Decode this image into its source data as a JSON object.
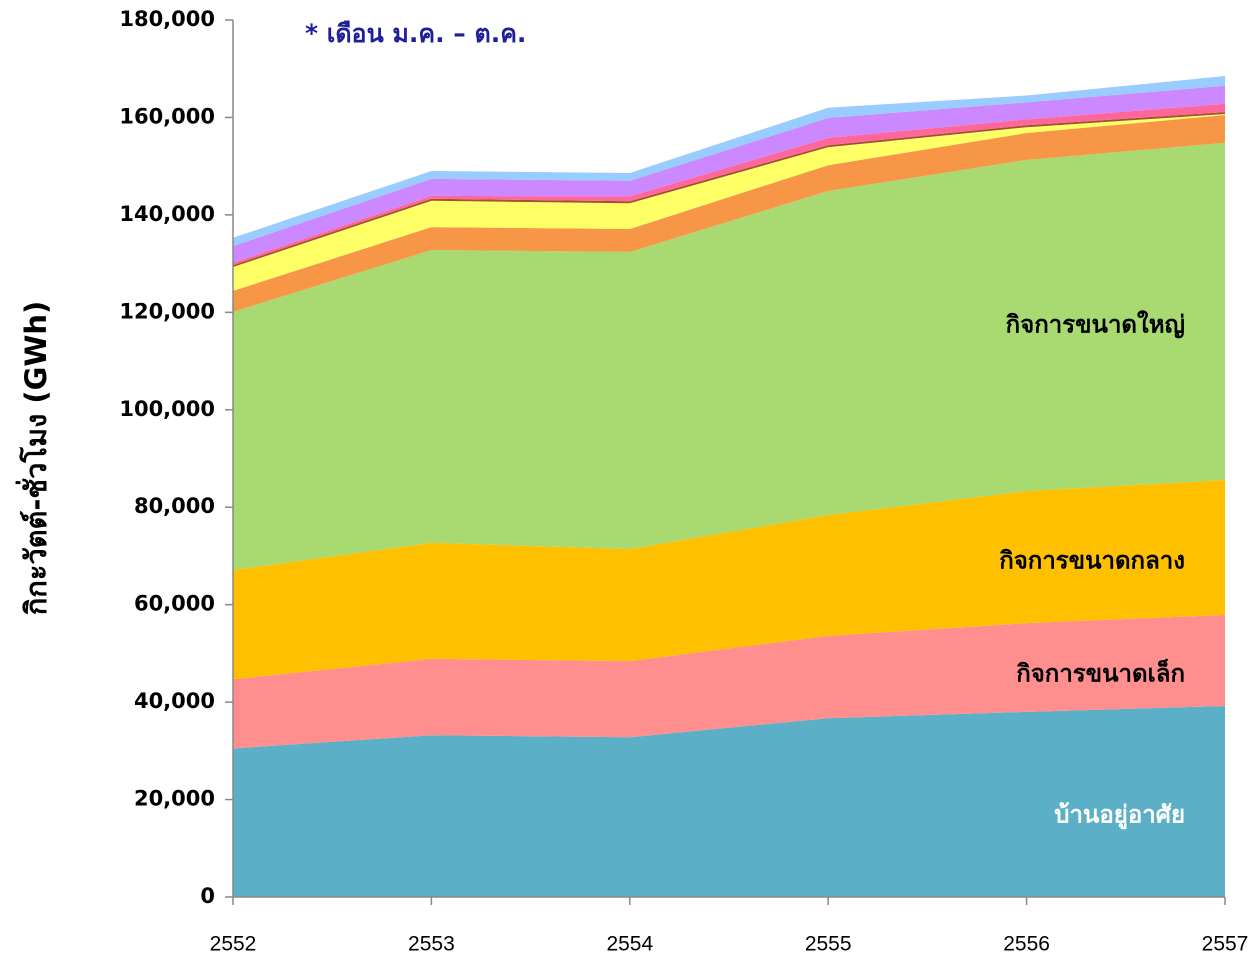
{
  "chart_data": {
    "type": "stacked_area",
    "annotation": "* เดือน ม.ค. – ต.ค.",
    "y_label": "กิกะวัตต์-ชั่วโมง (GWh)",
    "categories": [
      "2552",
      "2553",
      "2554",
      "2555",
      "2556",
      "2557"
    ],
    "series": [
      {
        "name": "บ้านอยู่อาศัย",
        "color": "#5bafc7",
        "label_color": "#ffffff",
        "values": [
          30500,
          33200,
          32800,
          36700,
          38000,
          39200
        ]
      },
      {
        "name": "กิจการขนาดเล็ก",
        "color": "#ff8f8f",
        "label_color": "#000000",
        "values": [
          14200,
          15700,
          15600,
          16900,
          18200,
          18700
        ]
      },
      {
        "name": "กิจการขนาดกลาง",
        "color": "#ffc000",
        "label_color": "#000000",
        "values": [
          22400,
          23800,
          23000,
          24800,
          27100,
          27700
        ]
      },
      {
        "name": "กิจการขนาดใหญ่",
        "color": "#a9d971",
        "label_color": "#000000",
        "values": [
          53000,
          60100,
          61000,
          66500,
          68000,
          69200
        ]
      },
      {
        "color": "#f79646",
        "values": [
          4300,
          4700,
          4700,
          5300,
          5500,
          5700
        ]
      },
      {
        "color": "#ffff66",
        "values": [
          4900,
          5400,
          5300,
          3700,
          1200,
          200
        ]
      },
      {
        "color": "#a0522d",
        "values": [
          400,
          400,
          400,
          400,
          400,
          400
        ]
      },
      {
        "color": "#ff6699",
        "values": [
          500,
          600,
          1000,
          1500,
          1200,
          1700
        ]
      },
      {
        "color": "#cc88ff",
        "values": [
          3400,
          3500,
          3200,
          4100,
          3500,
          3700
        ]
      },
      {
        "color": "#99ccff",
        "values": [
          1700,
          1600,
          1600,
          2100,
          1400,
          2000
        ]
      }
    ],
    "ylim": [
      0,
      180000
    ],
    "yticks": [
      0,
      {
        "value": 20000,
        "label": "20,000"
      },
      {
        "value": 40000,
        "label": "40,000"
      },
      {
        "value": 60000,
        "label": "60,000"
      },
      {
        "value": 80000,
        "label": "80,000"
      },
      {
        "value": 100000,
        "label": "100,000"
      },
      {
        "value": 120000,
        "label": "120,000"
      },
      {
        "value": 140000,
        "label": "140,000"
      },
      {
        "value": 160000,
        "label": "160,000"
      },
      {
        "value": 180000,
        "label": "180,000"
      }
    ]
  }
}
